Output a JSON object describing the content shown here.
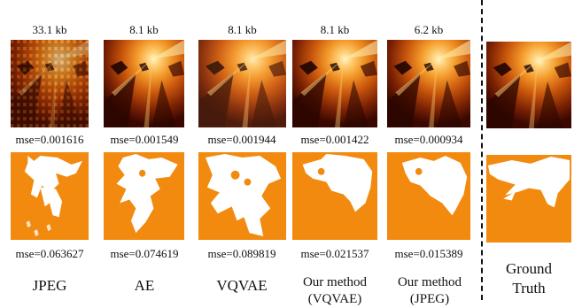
{
  "columns": [
    {
      "method": "JPEG",
      "size": "33.1 kb",
      "mse_top": "mse=0.001616",
      "mse_bottom": "mse=0.063627"
    },
    {
      "method": "AE",
      "size": "8.1 kb",
      "mse_top": "mse=0.001549",
      "mse_bottom": "mse=0.074619"
    },
    {
      "method": "VQVAE",
      "size": "8.1 kb",
      "mse_top": "mse=0.001944",
      "mse_bottom": "mse=0.089819"
    },
    {
      "method": "Our method\n(VQVAE)",
      "size": "8.1 kb",
      "mse_top": "mse=0.001422",
      "mse_bottom": "mse=0.021537"
    },
    {
      "method": "Our method\n(JPEG)",
      "size": "6.2 kb",
      "mse_top": "mse=0.000934",
      "mse_bottom": "mse=0.015389"
    }
  ],
  "ground_truth": {
    "label": "Ground\nTruth"
  },
  "colors": {
    "mask_orange": "#f28a0f",
    "heat_dark": "#3a0800",
    "heat_bright": "#ffe9a0"
  }
}
